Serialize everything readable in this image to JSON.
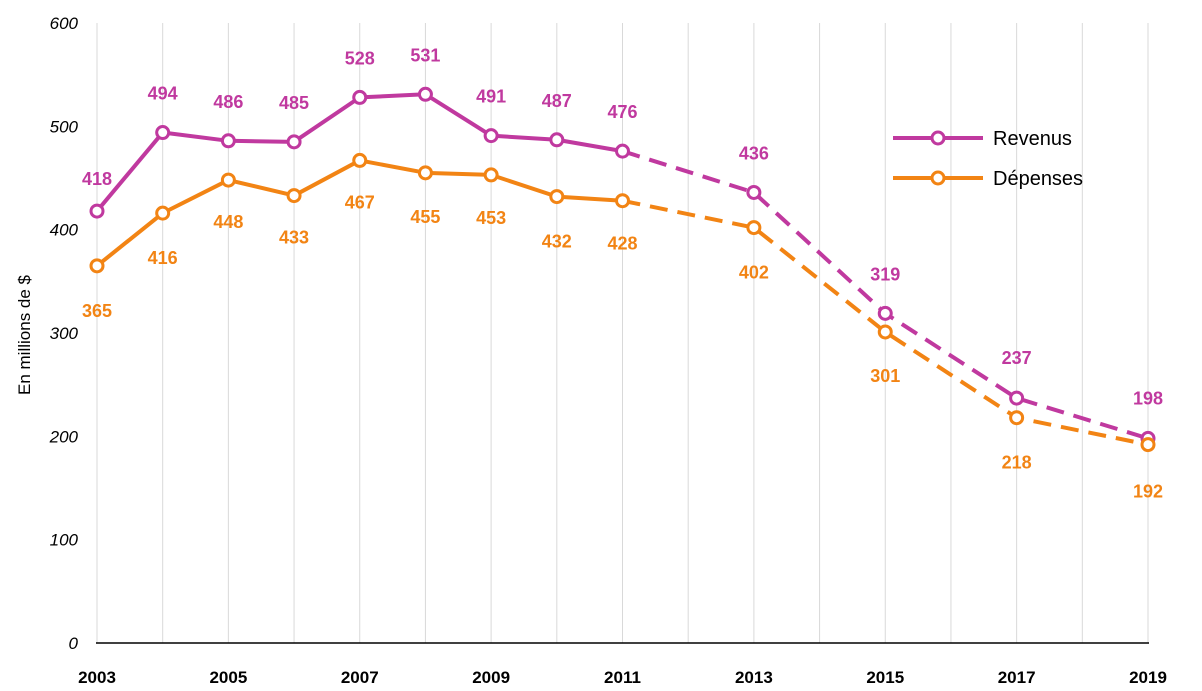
{
  "chart_data": {
    "type": "line",
    "title": "",
    "xlabel": "",
    "ylabel": "En millions de $",
    "ylim": [
      0,
      600
    ],
    "yticks": [
      "0",
      "100",
      "200",
      "300",
      "400",
      "500",
      "600"
    ],
    "x": [
      2003,
      2004,
      2005,
      2006,
      2007,
      2008,
      2009,
      2010,
      2011,
      2013,
      2015,
      2017,
      2019
    ],
    "xticks": [
      "2003",
      "2005",
      "2007",
      "2009",
      "2011",
      "2013",
      "2015",
      "2017",
      "2019"
    ],
    "x_range": [
      2003,
      2019
    ],
    "grid": "vertical",
    "legend_position": "right",
    "dashed_from_x": 2011,
    "series": [
      {
        "name": "Revenus",
        "color": "#C0399F",
        "values": [
          418,
          494,
          486,
          485,
          528,
          531,
          491,
          487,
          476,
          436,
          319,
          237,
          198
        ],
        "labels": [
          "418",
          "494",
          "486",
          "485",
          "528",
          "531",
          "491",
          "487",
          "476",
          "436",
          "319",
          "237",
          "198"
        ]
      },
      {
        "name": "Dépenses",
        "color": "#F28414",
        "values": [
          365,
          416,
          448,
          433,
          467,
          455,
          453,
          432,
          428,
          402,
          301,
          218,
          192
        ],
        "labels": [
          "365",
          "416",
          "448",
          "433",
          "467",
          "455",
          "453",
          "432",
          "428",
          "402",
          "301",
          "218",
          "192"
        ]
      }
    ]
  }
}
